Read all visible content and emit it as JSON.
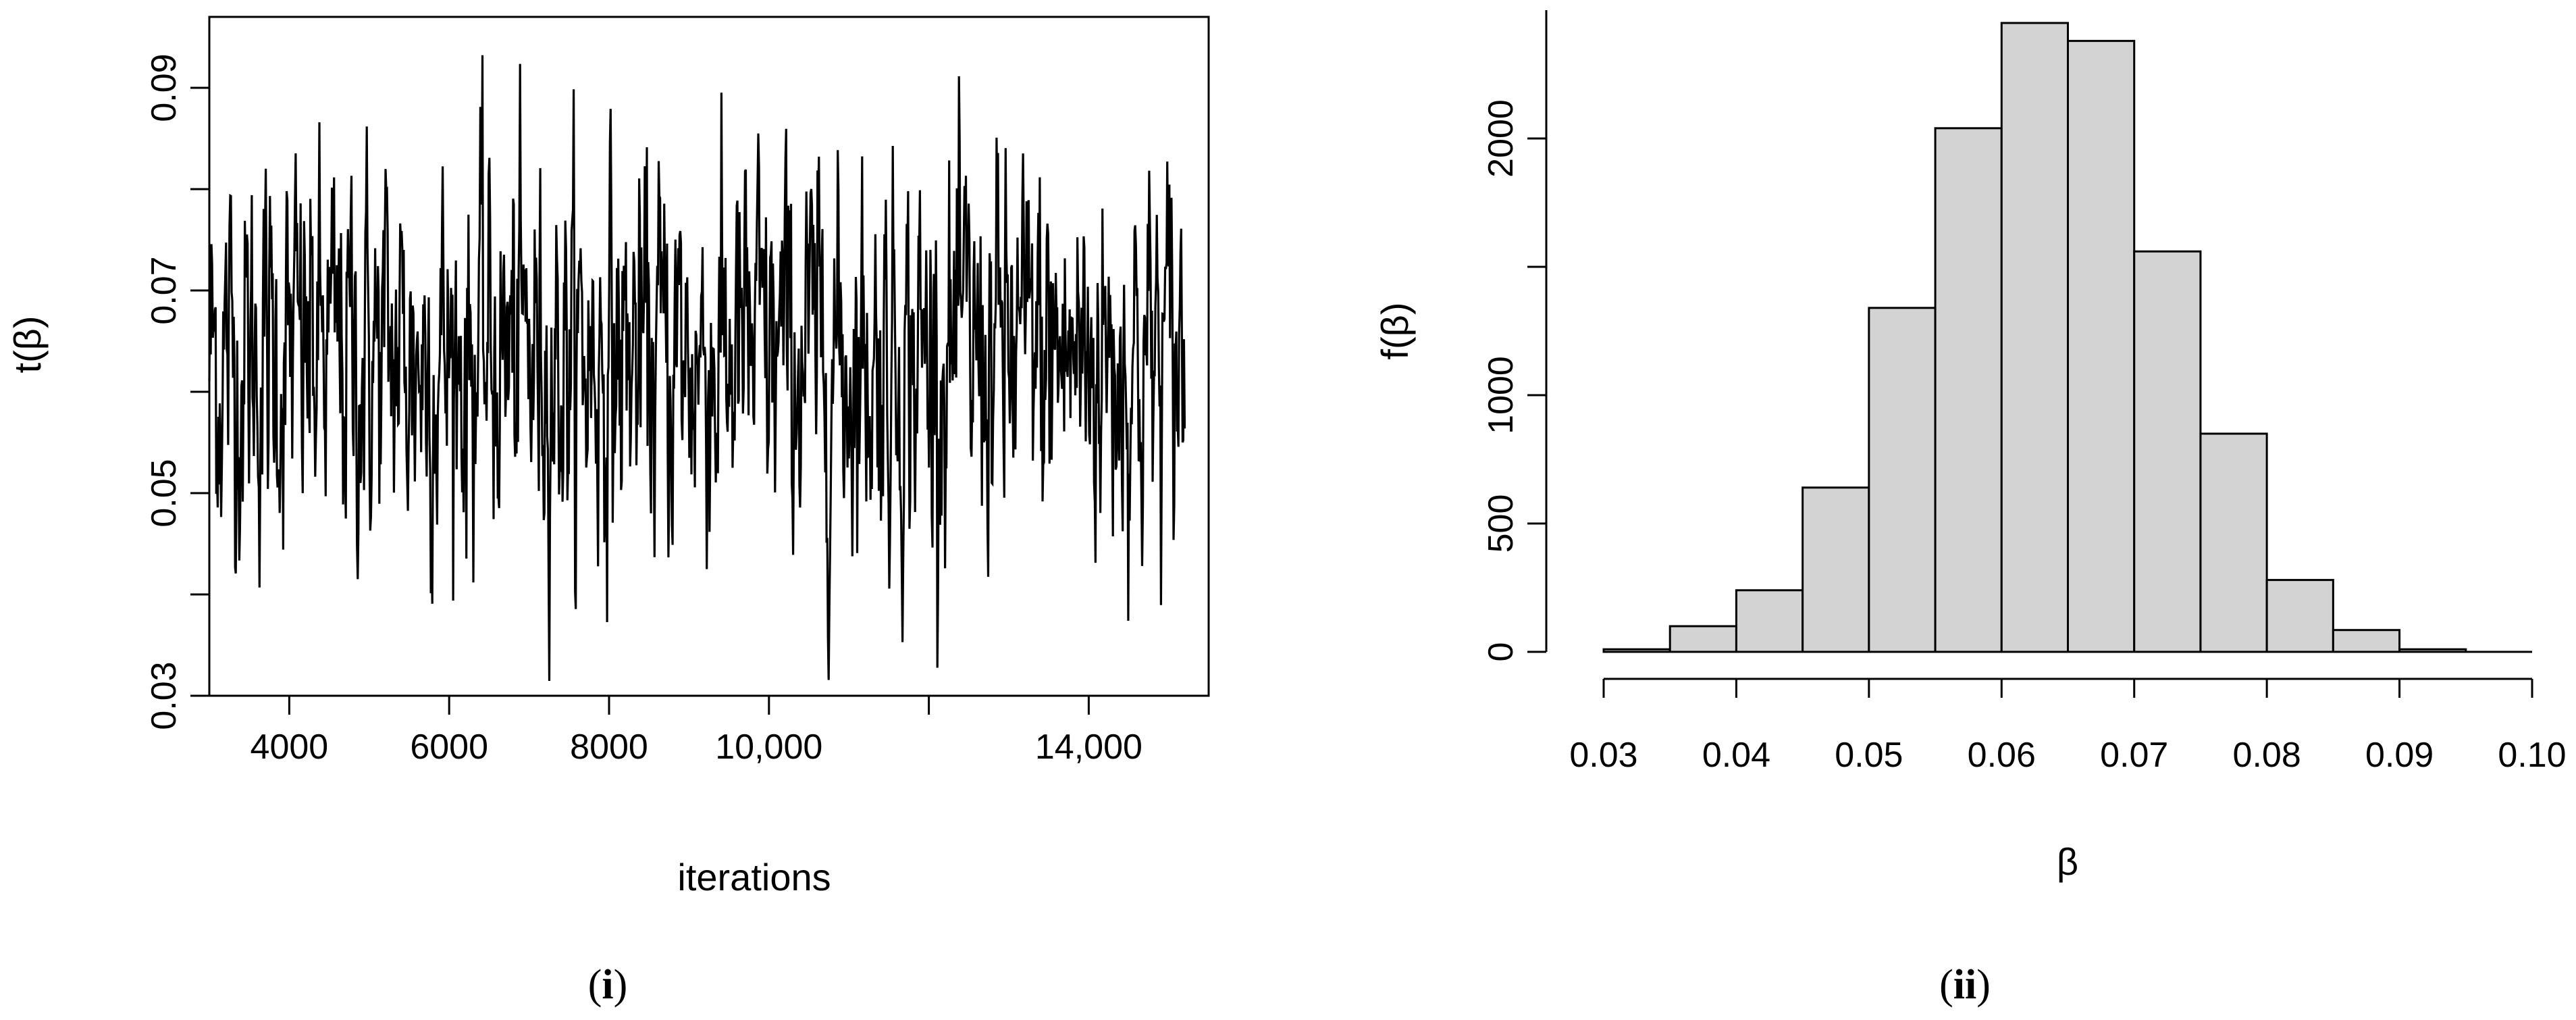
{
  "chart_data": [
    {
      "type": "line",
      "panel_label": "(i)",
      "panel_label_parts": {
        "open": "(",
        "text": "i",
        "close": ")"
      },
      "xlabel": "iterations",
      "ylabel": "t(β)",
      "xlim": [
        3000,
        15500
      ],
      "ylim": [
        0.03,
        0.097
      ],
      "x_ticks": [
        4000,
        6000,
        8000,
        10000,
        12000,
        14000
      ],
      "x_tick_labels": [
        "4000",
        "6000",
        "8000",
        "10,000",
        "",
        "14,000"
      ],
      "y_ticks": [
        0.03,
        0.04,
        0.05,
        0.06,
        0.07,
        0.08,
        0.09
      ],
      "y_tick_labels": [
        "0.03",
        "",
        "0.05",
        "",
        "0.07",
        "",
        "0.09"
      ],
      "series": [
        {
          "x_start": 3000,
          "x_end": 15200,
          "mean": 0.0635,
          "sd": 0.0095,
          "min": 0.031,
          "max": 0.096
        }
      ],
      "grid": false
    },
    {
      "type": "bar",
      "subtype": "histogram",
      "panel_label": "(ii)",
      "panel_label_parts": {
        "open": "(",
        "text": "ii",
        "close": ")"
      },
      "xlabel": "β",
      "ylabel": "f(β)",
      "xlim": [
        0.03,
        0.1
      ],
      "ylim": [
        0,
        2500
      ],
      "bin_edges": [
        0.03,
        0.035,
        0.04,
        0.045,
        0.05,
        0.055,
        0.06,
        0.065,
        0.07,
        0.075,
        0.08,
        0.085,
        0.09,
        0.095,
        0.1
      ],
      "values": [
        10,
        100,
        240,
        640,
        1340,
        2040,
        2450,
        2380,
        1560,
        850,
        280,
        85,
        10,
        0
      ],
      "x_ticks": [
        0.03,
        0.04,
        0.05,
        0.06,
        0.07,
        0.08,
        0.09,
        0.1
      ],
      "x_tick_labels": [
        "0.03",
        "0.04",
        "0.05",
        "0.06",
        "0.07",
        "0.08",
        "0.09",
        "0.10"
      ],
      "y_ticks": [
        0,
        500,
        1000,
        1500,
        2000
      ],
      "y_tick_labels": [
        "0",
        "500",
        "1000",
        "",
        "2000"
      ],
      "bar_color": "#d3d3d3",
      "grid": false
    }
  ]
}
